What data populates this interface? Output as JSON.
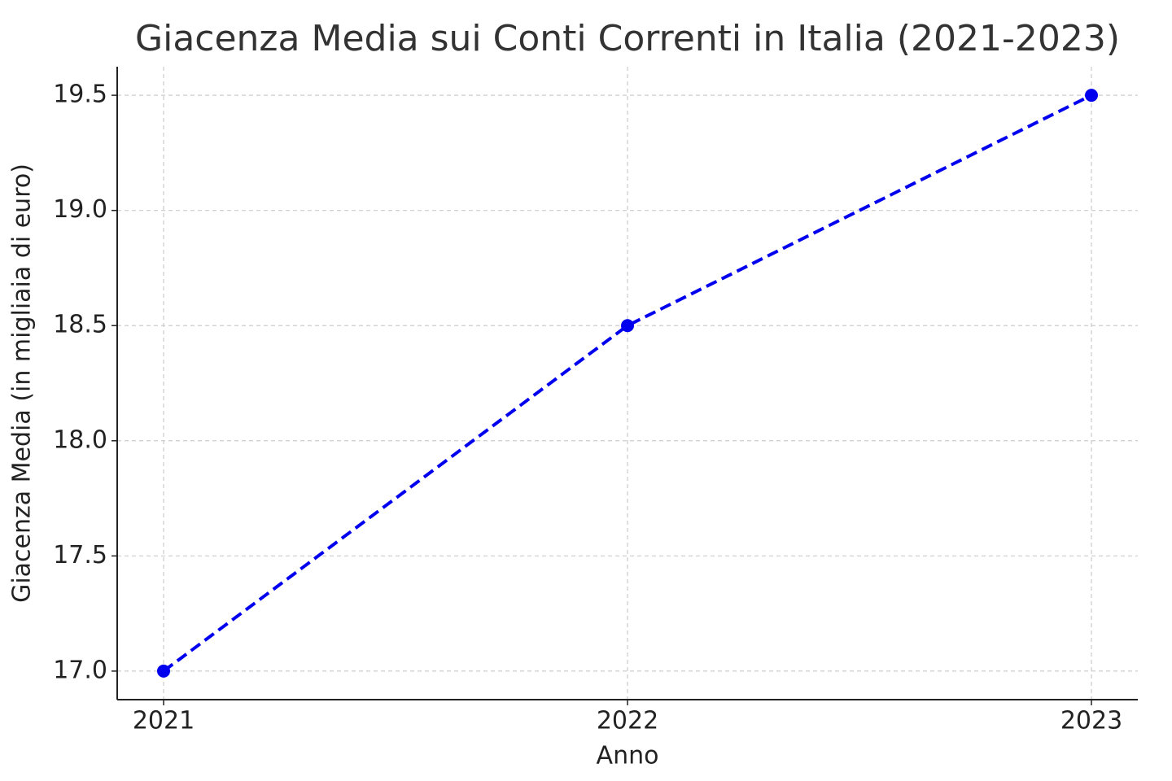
{
  "chart_data": {
    "type": "line",
    "title": "Giacenza Media sui Conti Correnti in Italia (2021-2023)",
    "x_label": "Anno",
    "y_label": "Giacenza Media (in migliaia di euro)",
    "x": [
      2021,
      2022,
      2023
    ],
    "series": [
      {
        "name": "Giacenza Media",
        "color": "#0000ee",
        "values": [
          17.0,
          18.5,
          19.5
        ]
      }
    ],
    "xlim": [
      2020.9,
      2023.1
    ],
    "xticks": [
      2021,
      2022,
      2023
    ],
    "ylim": [
      16.876,
      19.624
    ],
    "yticks": [
      {
        "value": 17,
        "label": "17.0"
      },
      17.5,
      {
        "value": 18,
        "label": "18.0"
      },
      18.5,
      {
        "value": 19,
        "label": "19.0"
      },
      19.5
    ],
    "grid": true
  }
}
